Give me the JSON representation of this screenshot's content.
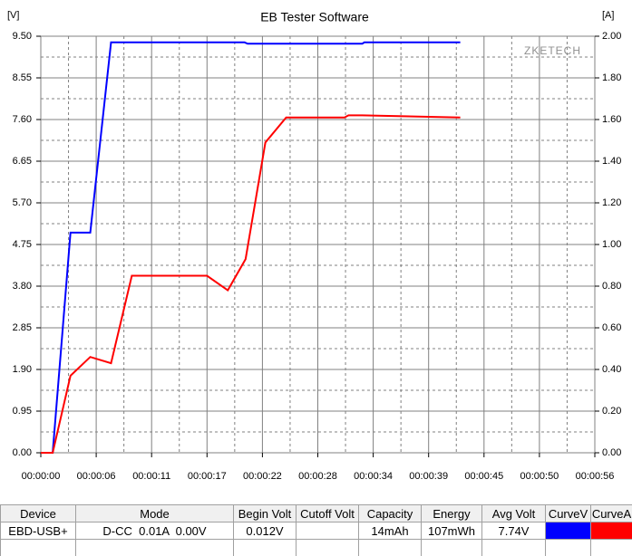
{
  "chart_data": {
    "type": "line",
    "title": "EB Tester Software",
    "y_unit": "[V]",
    "y2_unit": "[A]",
    "watermark": "ZKETECH",
    "xlim": [
      0,
      56
    ],
    "xticks": [
      {
        "value": 0,
        "label": "00:00:00"
      },
      {
        "value": 5.6,
        "label": "00:00:06"
      },
      {
        "value": 11.2,
        "label": "00:00:11"
      },
      {
        "value": 16.8,
        "label": "00:00:17"
      },
      {
        "value": 22.4,
        "label": "00:00:22"
      },
      {
        "value": 28,
        "label": "00:00:28"
      },
      {
        "value": 33.6,
        "label": "00:00:34"
      },
      {
        "value": 39.2,
        "label": "00:00:39"
      },
      {
        "value": 44.8,
        "label": "00:00:45"
      },
      {
        "value": 50.4,
        "label": "00:00:50"
      },
      {
        "value": 56,
        "label": "00:00:56"
      }
    ],
    "ylim": [
      0,
      9.5
    ],
    "yticks": [
      {
        "value": 0,
        "label": "0.00"
      },
      {
        "value": 0.95,
        "label": "0.95"
      },
      {
        "value": 1.9,
        "label": "1.90"
      },
      {
        "value": 2.85,
        "label": "2.85"
      },
      {
        "value": 3.8,
        "label": "3.80"
      },
      {
        "value": 4.75,
        "label": "4.75"
      },
      {
        "value": 5.7,
        "label": "5.70"
      },
      {
        "value": 6.65,
        "label": "6.65"
      },
      {
        "value": 7.6,
        "label": "7.60"
      },
      {
        "value": 8.55,
        "label": "8.55"
      },
      {
        "value": 9.5,
        "label": "9.50"
      }
    ],
    "y2lim": [
      0,
      2
    ],
    "y2ticks": [
      {
        "value": 0,
        "label": "0.00"
      },
      {
        "value": 0.2,
        "label": "0.20"
      },
      {
        "value": 0.4,
        "label": "0.40"
      },
      {
        "value": 0.6,
        "label": "0.60"
      },
      {
        "value": 0.8,
        "label": "0.80"
      },
      {
        "value": 1,
        "label": "1.00"
      },
      {
        "value": 1.2,
        "label": "1.20"
      },
      {
        "value": 1.4,
        "label": "1.40"
      },
      {
        "value": 1.6,
        "label": "1.60"
      },
      {
        "value": 1.8,
        "label": "1.80"
      },
      {
        "value": 2,
        "label": "2.00"
      }
    ],
    "grid": true,
    "series": [
      {
        "name": "CurveV",
        "color": "#0000ff",
        "axis": "y",
        "x": [
          0,
          1.2,
          3.0,
          5.0,
          7.1,
          20.6,
          20.9,
          32.5,
          32.7,
          42.4
        ],
        "values": [
          0,
          0,
          5.02,
          5.02,
          9.36,
          9.36,
          9.33,
          9.33,
          9.36,
          9.36
        ]
      },
      {
        "name": "CurveA",
        "color": "#ff0000",
        "axis": "y2",
        "x": [
          0,
          1.2,
          3.0,
          5.0,
          7.1,
          9.2,
          16.8,
          18.9,
          20.7,
          22.7,
          24.8,
          30.7,
          31.1,
          32.5,
          42.4
        ],
        "values": [
          0,
          0,
          0.37,
          0.46,
          0.43,
          0.85,
          0.85,
          0.78,
          0.93,
          1.49,
          1.61,
          1.61,
          1.62,
          1.62,
          1.61
        ]
      }
    ]
  },
  "table": {
    "header": [
      "Device",
      "Mode",
      "Begin Volt",
      "Cutoff Volt",
      "Capacity",
      "Energy",
      "Avg Volt",
      "CurveV",
      "CurveA"
    ],
    "row": [
      "EBD-USB+",
      "D-CC  0.01A  0.00V",
      "0.012V",
      null,
      "14mAh",
      "107mWh",
      "7.74V"
    ]
  }
}
